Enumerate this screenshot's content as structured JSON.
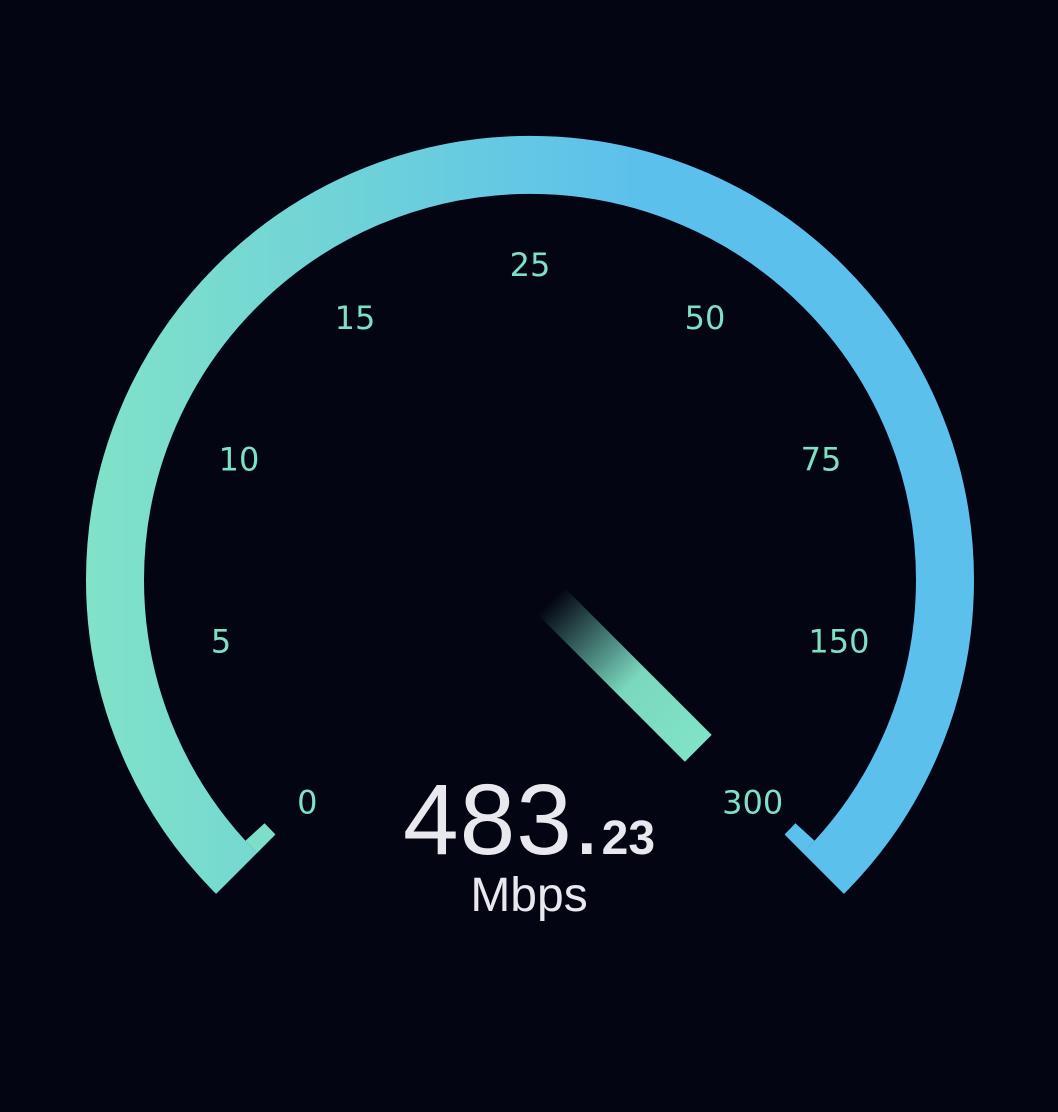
{
  "gauge": {
    "scale_labels": [
      "0",
      "5",
      "10",
      "15",
      "25",
      "50",
      "75",
      "150",
      "300"
    ],
    "needle_scale_fraction": 1.0,
    "arc_color_start": "#80e3c7",
    "arc_color_end": "#5cc0ec",
    "needle_color": "#80e3c7"
  },
  "readout": {
    "whole": "483.",
    "fraction": "23",
    "unit": "Mbps"
  }
}
